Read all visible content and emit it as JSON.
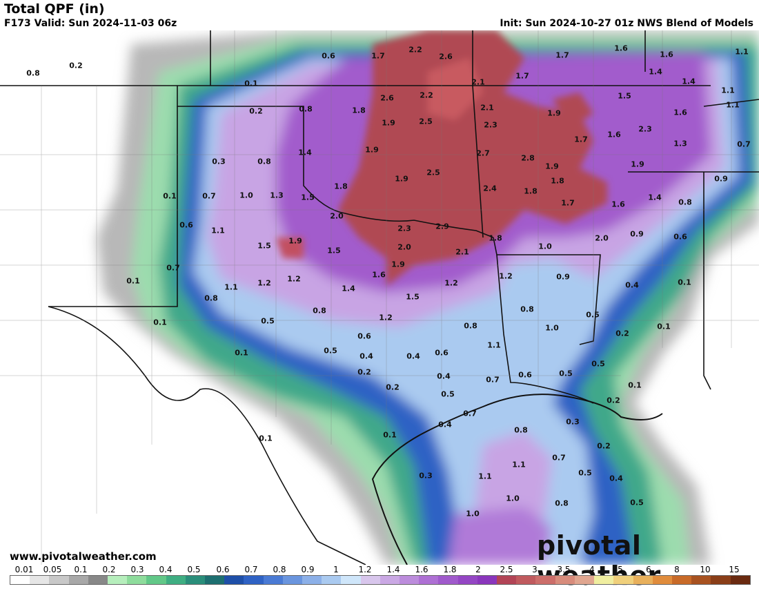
{
  "header": {
    "title": "Total QPF (in)",
    "valid": "F173 Valid: Sun 2024-11-03 06z",
    "init": "Init: Sun 2024-10-27 01z NWS Blend of Models"
  },
  "map_labels": [
    {
      "v": "0.8"
    },
    {
      "v": "0.2"
    },
    {
      "v": "0.6"
    },
    {
      "v": "1.7"
    },
    {
      "v": "2.2"
    },
    {
      "v": "2.6"
    },
    {
      "v": "1.7"
    },
    {
      "v": "1.6"
    },
    {
      "v": "1.6"
    },
    {
      "v": "1.1"
    },
    {
      "v": "0.1"
    },
    {
      "v": "1.7"
    },
    {
      "v": "2.1"
    },
    {
      "v": "1.4"
    },
    {
      "v": "1.4"
    },
    {
      "v": "1.1"
    },
    {
      "v": "1.5"
    },
    {
      "v": "2.6"
    },
    {
      "v": "2.2"
    },
    {
      "v": "0.2"
    },
    {
      "v": "0.8"
    },
    {
      "v": "1.8"
    },
    {
      "v": "2.1"
    },
    {
      "v": "1.9"
    },
    {
      "v": "1.6"
    },
    {
      "v": "1.1"
    },
    {
      "v": "1.9"
    },
    {
      "v": "2.5"
    },
    {
      "v": "2.3"
    },
    {
      "v": "2.3"
    },
    {
      "v": "1.6"
    },
    {
      "v": "1.7"
    },
    {
      "v": "1.3"
    },
    {
      "v": "0.7"
    },
    {
      "v": "1.4"
    },
    {
      "v": "1.9"
    },
    {
      "v": "2.7"
    },
    {
      "v": "2.8"
    },
    {
      "v": "0.3"
    },
    {
      "v": "0.8"
    },
    {
      "v": "1.9"
    },
    {
      "v": "1.9"
    },
    {
      "v": "1.9"
    },
    {
      "v": "2.5"
    },
    {
      "v": "1.8"
    },
    {
      "v": "0.9"
    },
    {
      "v": "1.8"
    },
    {
      "v": "2.4"
    },
    {
      "v": "1.8"
    },
    {
      "v": "0.1"
    },
    {
      "v": "0.7"
    },
    {
      "v": "1.0"
    },
    {
      "v": "1.3"
    },
    {
      "v": "1.5"
    },
    {
      "v": "1.7"
    },
    {
      "v": "1.6"
    },
    {
      "v": "1.4"
    },
    {
      "v": "0.8"
    },
    {
      "v": "2.0"
    },
    {
      "v": "0.6"
    },
    {
      "v": "1.1"
    },
    {
      "v": "2.3"
    },
    {
      "v": "2.9"
    },
    {
      "v": "1.8"
    },
    {
      "v": "2.0"
    },
    {
      "v": "0.9"
    },
    {
      "v": "0.6"
    },
    {
      "v": "1.5"
    },
    {
      "v": "1.9"
    },
    {
      "v": "1.5"
    },
    {
      "v": "2.0"
    },
    {
      "v": "2.1"
    },
    {
      "v": "1.0"
    },
    {
      "v": "0.7"
    },
    {
      "v": "1.9"
    },
    {
      "v": "1.2"
    },
    {
      "v": "0.9"
    },
    {
      "v": "0.1"
    },
    {
      "v": "1.1"
    },
    {
      "v": "1.2"
    },
    {
      "v": "1.2"
    },
    {
      "v": "1.6"
    },
    {
      "v": "1.2"
    },
    {
      "v": "0.4"
    },
    {
      "v": "0.1"
    },
    {
      "v": "0.8"
    },
    {
      "v": "1.4"
    },
    {
      "v": "1.5"
    },
    {
      "v": "0.8"
    },
    {
      "v": "0.8"
    },
    {
      "v": "1.2"
    },
    {
      "v": "0.5"
    },
    {
      "v": "0.1"
    },
    {
      "v": "0.5"
    },
    {
      "v": "0.8"
    },
    {
      "v": "1.0"
    },
    {
      "v": "0.1"
    },
    {
      "v": "0.6"
    },
    {
      "v": "1.1"
    },
    {
      "v": "0.2"
    },
    {
      "v": "0.1"
    },
    {
      "v": "0.5"
    },
    {
      "v": "0.4"
    },
    {
      "v": "0.4"
    },
    {
      "v": "0.6"
    },
    {
      "v": "0.5"
    },
    {
      "v": "0.2"
    },
    {
      "v": "0.4"
    },
    {
      "v": "0.7"
    },
    {
      "v": "0.6"
    },
    {
      "v": "0.5"
    },
    {
      "v": "0.1"
    },
    {
      "v": "0.2"
    },
    {
      "v": "0.5"
    },
    {
      "v": "0.2"
    },
    {
      "v": "0.4"
    },
    {
      "v": "0.7"
    },
    {
      "v": "0.3"
    },
    {
      "v": "0.1"
    },
    {
      "v": "0.1"
    },
    {
      "v": "0.8"
    },
    {
      "v": "0.2"
    },
    {
      "v": "0.7"
    },
    {
      "v": "0.3"
    },
    {
      "v": "1.1"
    },
    {
      "v": "1.1"
    },
    {
      "v": "0.5"
    },
    {
      "v": "0.4"
    },
    {
      "v": "1.0"
    },
    {
      "v": "0.5"
    },
    {
      "v": "0.8"
    },
    {
      "v": "1.0"
    }
  ],
  "legend": {
    "ticks": [
      "0.01",
      "0.05",
      "0.1",
      "0.2",
      "0.3",
      "0.4",
      "0.5",
      "0.6",
      "0.7",
      "0.8",
      "0.9",
      "1",
      "1.2",
      "1.4",
      "1.6",
      "1.8",
      "2",
      "2.5",
      "3",
      "3.5",
      "4",
      "5",
      "6",
      "8",
      "10",
      "15"
    ],
    "colors": [
      "#ffffff",
      "#e6e6e6",
      "#c8c8c8",
      "#a8a8a8",
      "#888888",
      "#b6eebc",
      "#8edc9c",
      "#62c888",
      "#3fae82",
      "#2a8e7a",
      "#1d6f70",
      "#1e4fa8",
      "#2f62c4",
      "#4a7ad4",
      "#6a95de",
      "#8cb0e8",
      "#aacaf0",
      "#cfe6fa",
      "#d8c6ec",
      "#caa8e4",
      "#bc8cdc",
      "#ae70d4",
      "#a05acc",
      "#9446c4",
      "#8a36bc",
      "#b24456",
      "#c05a5e",
      "#cc6e6a",
      "#d88c7c",
      "#e0a690",
      "#f0eea0",
      "#f0d07c",
      "#e8b05c",
      "#e08c3c",
      "#c86a28",
      "#a85220",
      "#8a3e18",
      "#6a2a10"
    ],
    "website": "www.pivotalweather.com",
    "brand": "pivotal weather"
  }
}
